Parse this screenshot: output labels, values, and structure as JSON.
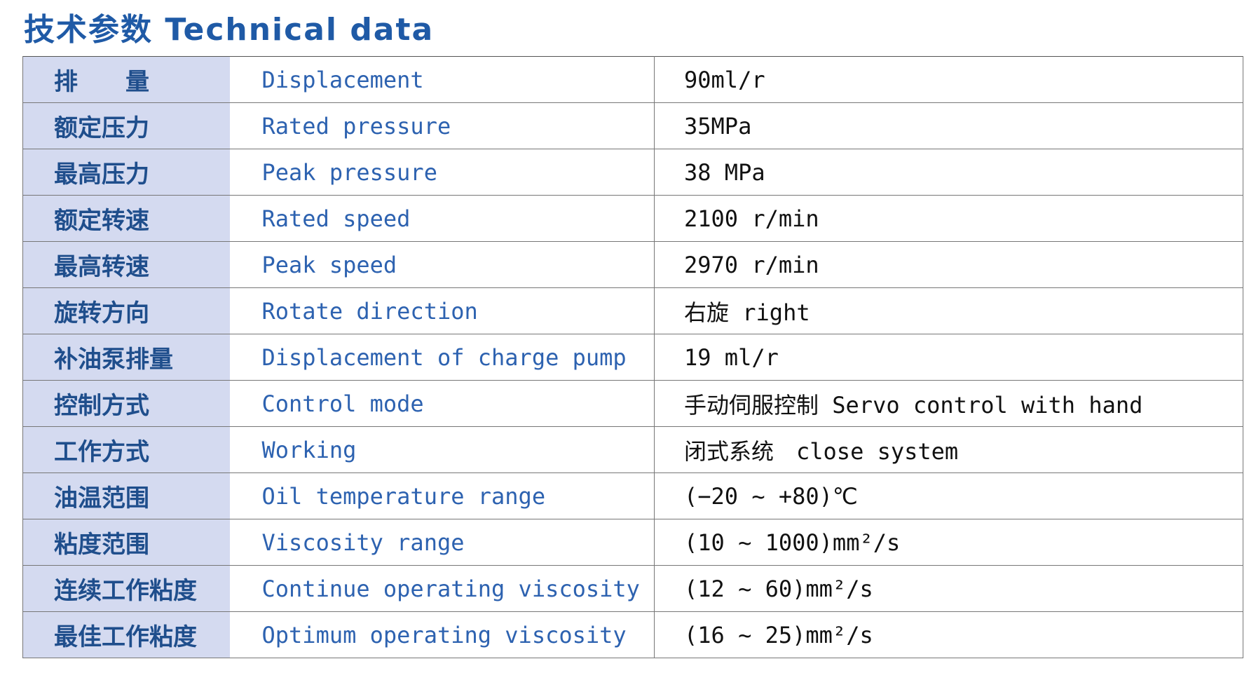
{
  "title": "技术参数 Technical data",
  "table": {
    "rows": [
      [
        "排　　量",
        "Displacement",
        "90ml/r"
      ],
      [
        "额定压力",
        "Rated pressure",
        "35MPa"
      ],
      [
        "最高压力",
        "Peak pressure",
        "38 MPa"
      ],
      [
        "额定转速",
        "Rated speed",
        "2100 r/min"
      ],
      [
        "最高转速",
        "Peak speed",
        "2970 r/min"
      ],
      [
        "旋转方向",
        "Rotate direction",
        "右旋 right"
      ],
      [
        "补油泵排量",
        "Displacement of charge pump",
        "19 ml/r"
      ],
      [
        "控制方式",
        "Control mode",
        "手动伺服控制 Servo control with hand"
      ],
      [
        "工作方式",
        "Working",
        "闭式系统　close system"
      ],
      [
        "油温范围",
        "Oil temperature range",
        "(−20 ~ +80)℃"
      ],
      [
        "粘度范围",
        "Viscosity range",
        "(10 ~ 1000)mm²/s"
      ],
      [
        "连续工作粘度",
        "Continue operating viscosity",
        "(12 ~ 60)mm²/s"
      ],
      [
        "最佳工作粘度",
        "Optimum operating viscosity",
        "(16 ~ 25)mm²/s"
      ]
    ]
  }
}
